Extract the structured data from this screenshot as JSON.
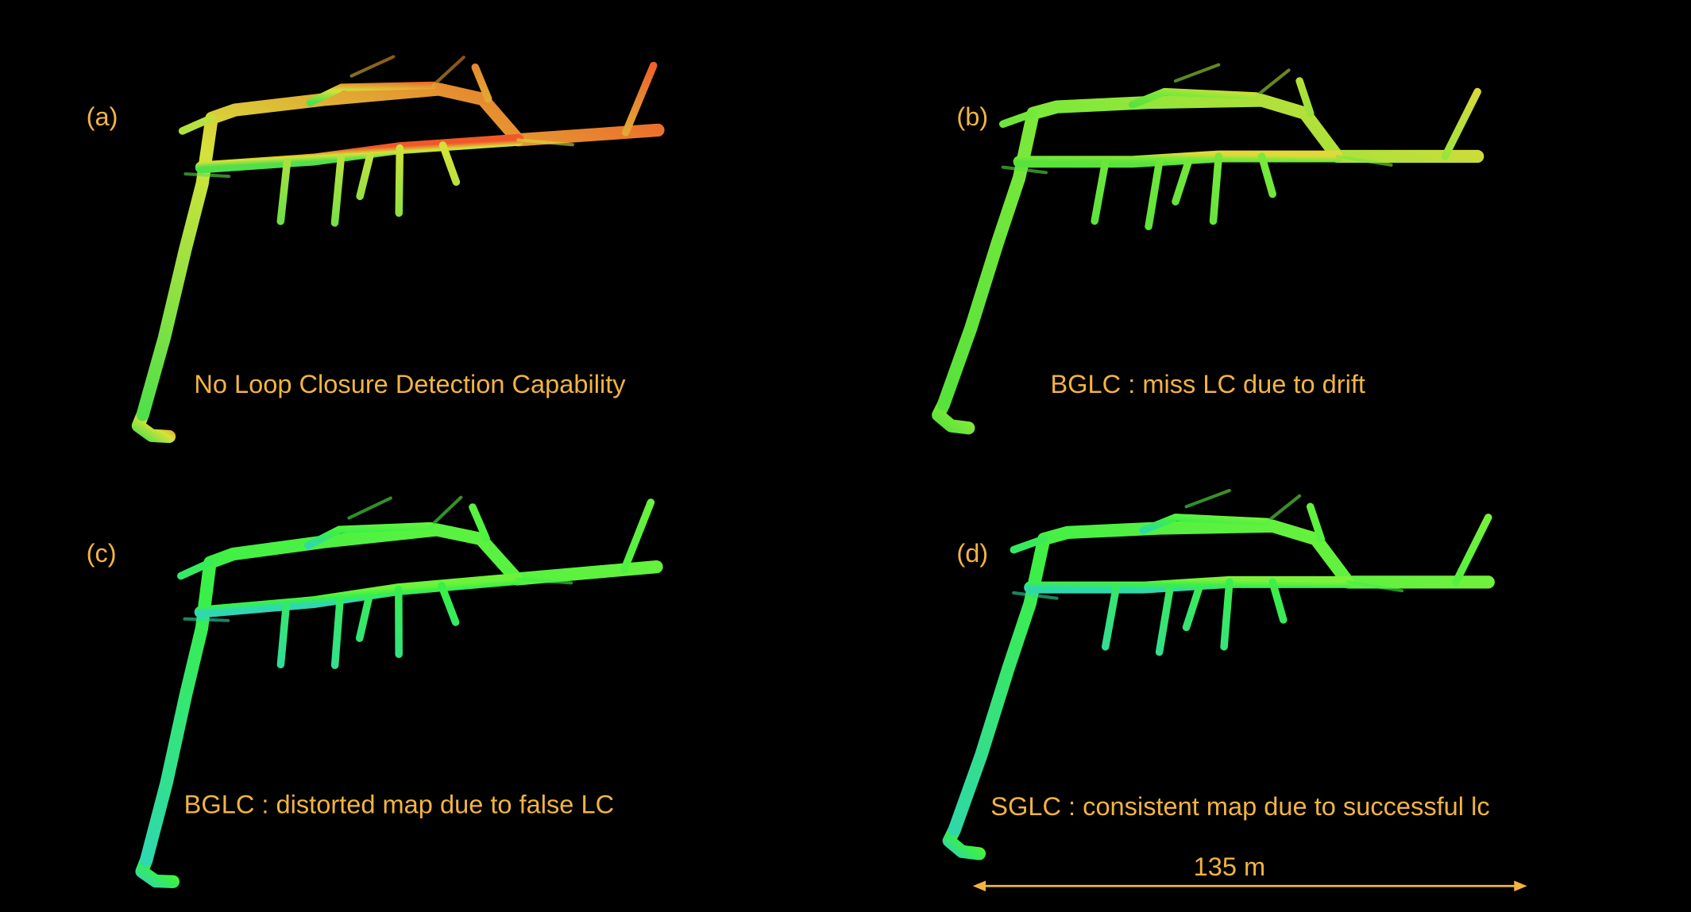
{
  "panels": [
    {
      "label": "(a)",
      "caption": "No Loop Closure Detection Capability"
    },
    {
      "label": "(b)",
      "caption": "BGLC : miss LC due to drift"
    },
    {
      "label": "(c)",
      "caption": "BGLC : distorted map due to false LC"
    },
    {
      "label": "(d)",
      "caption": "SGLC : consistent map due to successful lc"
    }
  ],
  "scale_bar": {
    "label": "135 m"
  }
}
